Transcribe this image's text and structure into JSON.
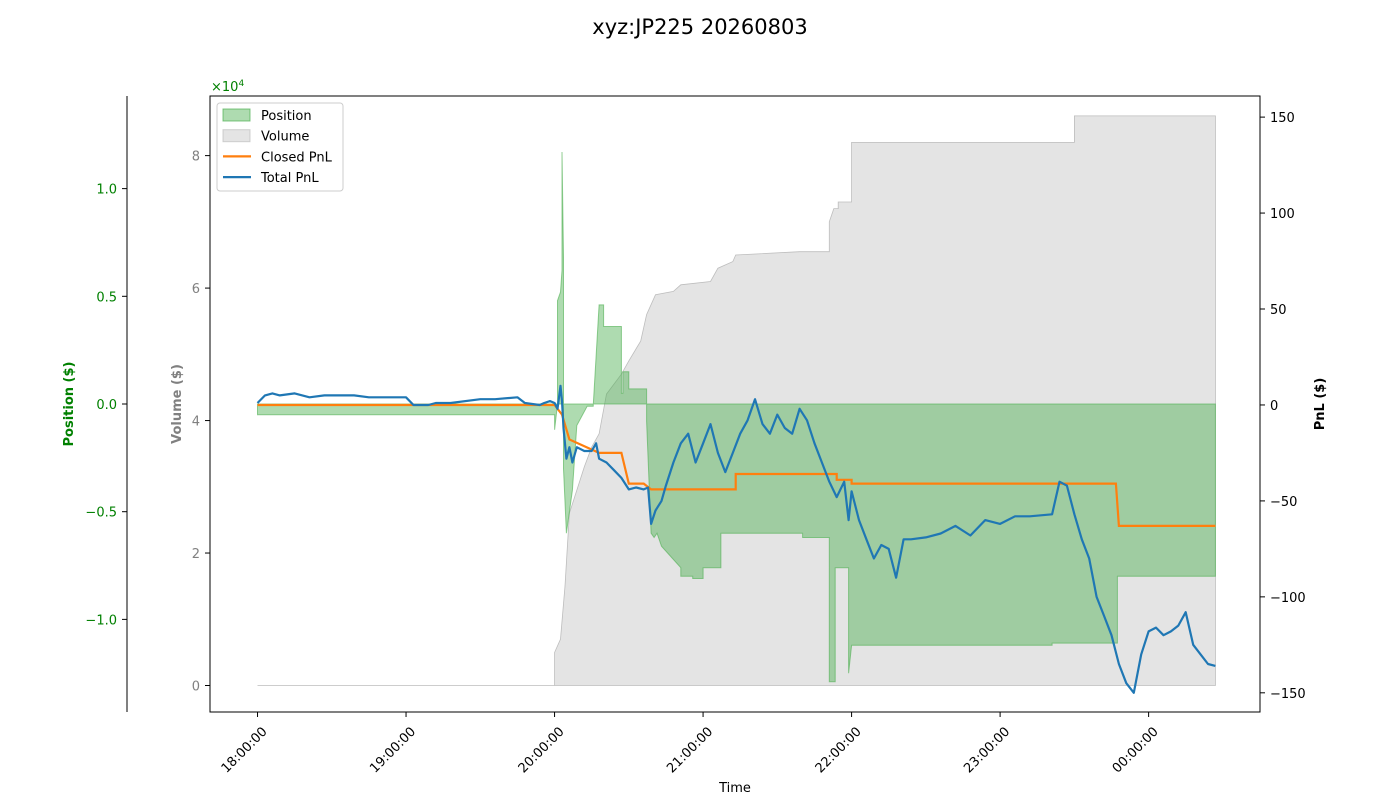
{
  "chart_data": {
    "type": "area",
    "title": "xyz:JP225 20260803",
    "xlabel": "Time",
    "x_ticks": [
      "18:00:00",
      "19:00:00",
      "20:00:00",
      "21:00:00",
      "22:00:00",
      "23:00:00",
      "00:00:00"
    ],
    "x_range_hours": [
      17.68,
      24.75
    ],
    "axes": {
      "position": {
        "label": "Position ($)",
        "color": "#008000",
        "ticks": [
          -1.0,
          -0.5,
          0.0,
          0.5,
          1.0
        ],
        "tick_labels": [
          "−1.0",
          "−0.5",
          "0.0",
          "0.5",
          "1.0"
        ],
        "range": [
          -1.43,
          1.43
        ],
        "exponent_label": "×10",
        "exponent": "4"
      },
      "volume": {
        "label": "Volume ($)",
        "color": "#808080",
        "ticks": [
          0,
          2,
          4,
          6,
          8
        ],
        "tick_labels": [
          "0",
          "2",
          "4",
          "6",
          "8"
        ],
        "range": [
          -0.4,
          8.9
        ]
      },
      "pnl": {
        "label": "PnL ($)",
        "color": "#000000",
        "ticks": [
          -150,
          -100,
          -50,
          0,
          50,
          100,
          150
        ],
        "tick_labels": [
          "−150",
          "−100",
          "−50",
          "0",
          "50",
          "100",
          "150"
        ],
        "range": [
          -160,
          161
        ]
      }
    },
    "legend": {
      "placement": "upper-left",
      "entries": [
        {
          "label": "Position",
          "kind": "area",
          "color": "#4caf50"
        },
        {
          "label": "Volume",
          "kind": "area",
          "color": "#c8c8c8"
        },
        {
          "label": "Closed PnL",
          "kind": "line",
          "color": "#ff7f0e"
        },
        {
          "label": "Total PnL",
          "kind": "line",
          "color": "#1f77b4"
        }
      ]
    },
    "series": [
      {
        "name": "Position",
        "axis": "position",
        "kind": "area",
        "unit": "x10^4 $",
        "points": [
          [
            18.0,
            -0.05
          ],
          [
            20.0,
            -0.05
          ],
          [
            20.0,
            -0.12
          ],
          [
            20.02,
            0.0
          ],
          [
            20.02,
            0.48
          ],
          [
            20.04,
            0.52
          ],
          [
            20.05,
            0.62
          ],
          [
            20.05,
            1.17
          ],
          [
            20.06,
            0.68
          ],
          [
            20.06,
            -0.3
          ],
          [
            20.08,
            -0.6
          ],
          [
            20.1,
            -0.5
          ],
          [
            20.12,
            -0.4
          ],
          [
            20.15,
            -0.1
          ],
          [
            20.22,
            -0.01
          ],
          [
            20.26,
            -0.01
          ],
          [
            20.3,
            0.46
          ],
          [
            20.33,
            0.46
          ],
          [
            20.33,
            0.36
          ],
          [
            20.45,
            0.36
          ],
          [
            20.45,
            0.05
          ],
          [
            20.46,
            0.05
          ],
          [
            20.46,
            0.15
          ],
          [
            20.5,
            0.15
          ],
          [
            20.5,
            0.07
          ],
          [
            20.62,
            0.07
          ],
          [
            20.62,
            -0.08
          ],
          [
            20.65,
            -0.6
          ],
          [
            20.67,
            -0.62
          ],
          [
            20.69,
            -0.6
          ],
          [
            20.72,
            -0.66
          ],
          [
            20.85,
            -0.76
          ],
          [
            20.85,
            -0.8
          ],
          [
            20.93,
            -0.8
          ],
          [
            20.93,
            -0.81
          ],
          [
            21.0,
            -0.81
          ],
          [
            21.0,
            -0.76
          ],
          [
            21.12,
            -0.76
          ],
          [
            21.12,
            -0.6
          ],
          [
            21.67,
            -0.6
          ],
          [
            21.67,
            -0.62
          ],
          [
            21.85,
            -0.62
          ],
          [
            21.85,
            -1.29
          ],
          [
            21.89,
            -1.29
          ],
          [
            21.89,
            -0.76
          ],
          [
            21.98,
            -0.76
          ],
          [
            21.98,
            -1.25
          ],
          [
            22.0,
            -1.12
          ],
          [
            23.35,
            -1.12
          ],
          [
            23.35,
            -1.11
          ],
          [
            23.79,
            -1.11
          ],
          [
            23.79,
            -0.8
          ],
          [
            24.45,
            -0.8
          ],
          [
            24.45,
            0.0
          ]
        ]
      },
      {
        "name": "Volume",
        "axis": "volume",
        "kind": "area",
        "unit": "x10^4 $",
        "points": [
          [
            18.0,
            0.0
          ],
          [
            20.0,
            0.0
          ],
          [
            20.0,
            0.5
          ],
          [
            20.04,
            0.7
          ],
          [
            20.07,
            1.5
          ],
          [
            20.1,
            2.6
          ],
          [
            20.2,
            3.3
          ],
          [
            20.25,
            3.6
          ],
          [
            20.3,
            3.8
          ],
          [
            20.35,
            4.4
          ],
          [
            20.45,
            4.7
          ],
          [
            20.5,
            4.9
          ],
          [
            20.58,
            5.2
          ],
          [
            20.62,
            5.6
          ],
          [
            20.65,
            5.75
          ],
          [
            20.68,
            5.9
          ],
          [
            20.8,
            5.95
          ],
          [
            20.85,
            6.05
          ],
          [
            21.05,
            6.1
          ],
          [
            21.1,
            6.3
          ],
          [
            21.2,
            6.4
          ],
          [
            21.22,
            6.5
          ],
          [
            21.65,
            6.55
          ],
          [
            21.85,
            6.55
          ],
          [
            21.85,
            7.0
          ],
          [
            21.88,
            7.2
          ],
          [
            21.91,
            7.2
          ],
          [
            21.91,
            7.3
          ],
          [
            22.0,
            7.3
          ],
          [
            22.0,
            8.2
          ],
          [
            22.3,
            8.2
          ],
          [
            23.4,
            8.2
          ],
          [
            23.5,
            8.2
          ],
          [
            23.5,
            8.6
          ],
          [
            24.45,
            8.6
          ]
        ]
      },
      {
        "name": "Closed PnL",
        "axis": "pnl",
        "kind": "line",
        "unit": "$",
        "points": [
          [
            18.0,
            0
          ],
          [
            20.0,
            0
          ],
          [
            20.05,
            -5
          ],
          [
            20.1,
            -18
          ],
          [
            20.3,
            -25
          ],
          [
            20.45,
            -25
          ],
          [
            20.5,
            -41
          ],
          [
            20.6,
            -41
          ],
          [
            20.65,
            -44
          ],
          [
            21.22,
            -44
          ],
          [
            21.22,
            -36
          ],
          [
            21.9,
            -36
          ],
          [
            21.9,
            -39
          ],
          [
            22.0,
            -39
          ],
          [
            22.0,
            -41
          ],
          [
            23.78,
            -41
          ],
          [
            23.8,
            -63
          ],
          [
            24.45,
            -63
          ]
        ]
      },
      {
        "name": "Total PnL",
        "axis": "pnl",
        "kind": "line",
        "unit": "$",
        "points": [
          [
            18.0,
            1
          ],
          [
            18.05,
            5
          ],
          [
            18.1,
            6
          ],
          [
            18.15,
            5
          ],
          [
            18.25,
            6
          ],
          [
            18.35,
            4
          ],
          [
            18.45,
            5
          ],
          [
            18.55,
            5
          ],
          [
            18.65,
            5
          ],
          [
            18.75,
            4
          ],
          [
            18.9,
            4
          ],
          [
            19.0,
            4
          ],
          [
            19.05,
            0
          ],
          [
            19.15,
            0
          ],
          [
            19.2,
            1
          ],
          [
            19.3,
            1
          ],
          [
            19.5,
            3
          ],
          [
            19.6,
            3
          ],
          [
            19.75,
            4
          ],
          [
            19.8,
            1
          ],
          [
            19.9,
            0
          ],
          [
            19.93,
            1
          ],
          [
            19.97,
            2
          ],
          [
            20.0,
            1
          ],
          [
            20.02,
            -2
          ],
          [
            20.04,
            10
          ],
          [
            20.05,
            2
          ],
          [
            20.06,
            -12
          ],
          [
            20.08,
            -28
          ],
          [
            20.1,
            -22
          ],
          [
            20.12,
            -30
          ],
          [
            20.15,
            -22
          ],
          [
            20.2,
            -24
          ],
          [
            20.25,
            -24
          ],
          [
            20.28,
            -20
          ],
          [
            20.3,
            -28
          ],
          [
            20.35,
            -30
          ],
          [
            20.4,
            -34
          ],
          [
            20.45,
            -38
          ],
          [
            20.5,
            -44
          ],
          [
            20.55,
            -43
          ],
          [
            20.6,
            -44
          ],
          [
            20.63,
            -43
          ],
          [
            20.65,
            -62
          ],
          [
            20.68,
            -55
          ],
          [
            20.72,
            -50
          ],
          [
            20.75,
            -42
          ],
          [
            20.8,
            -30
          ],
          [
            20.85,
            -20
          ],
          [
            20.9,
            -15
          ],
          [
            20.95,
            -30
          ],
          [
            21.0,
            -20
          ],
          [
            21.05,
            -10
          ],
          [
            21.1,
            -25
          ],
          [
            21.15,
            -35
          ],
          [
            21.2,
            -25
          ],
          [
            21.25,
            -15
          ],
          [
            21.3,
            -8
          ],
          [
            21.35,
            3
          ],
          [
            21.4,
            -10
          ],
          [
            21.45,
            -15
          ],
          [
            21.5,
            -5
          ],
          [
            21.55,
            -12
          ],
          [
            21.6,
            -15
          ],
          [
            21.65,
            -2
          ],
          [
            21.7,
            -8
          ],
          [
            21.75,
            -20
          ],
          [
            21.8,
            -30
          ],
          [
            21.85,
            -40
          ],
          [
            21.9,
            -48
          ],
          [
            21.95,
            -40
          ],
          [
            21.98,
            -60
          ],
          [
            22.0,
            -45
          ],
          [
            22.05,
            -60
          ],
          [
            22.1,
            -70
          ],
          [
            22.15,
            -80
          ],
          [
            22.2,
            -73
          ],
          [
            22.25,
            -75
          ],
          [
            22.3,
            -90
          ],
          [
            22.35,
            -70
          ],
          [
            22.4,
            -70
          ],
          [
            22.5,
            -69
          ],
          [
            22.6,
            -67
          ],
          [
            22.7,
            -63
          ],
          [
            22.8,
            -68
          ],
          [
            22.9,
            -60
          ],
          [
            23.0,
            -62
          ],
          [
            23.1,
            -58
          ],
          [
            23.2,
            -58
          ],
          [
            23.35,
            -57
          ],
          [
            23.4,
            -40
          ],
          [
            23.45,
            -42
          ],
          [
            23.5,
            -57
          ],
          [
            23.55,
            -70
          ],
          [
            23.6,
            -80
          ],
          [
            23.65,
            -100
          ],
          [
            23.7,
            -110
          ],
          [
            23.75,
            -120
          ],
          [
            23.8,
            -135
          ],
          [
            23.85,
            -145
          ],
          [
            23.9,
            -150
          ],
          [
            23.95,
            -130
          ],
          [
            24.0,
            -118
          ],
          [
            24.05,
            -116
          ],
          [
            24.1,
            -120
          ],
          [
            24.15,
            -118
          ],
          [
            24.2,
            -115
          ],
          [
            24.25,
            -108
          ],
          [
            24.3,
            -125
          ],
          [
            24.35,
            -130
          ],
          [
            24.4,
            -135
          ],
          [
            24.45,
            -136
          ]
        ]
      }
    ]
  }
}
